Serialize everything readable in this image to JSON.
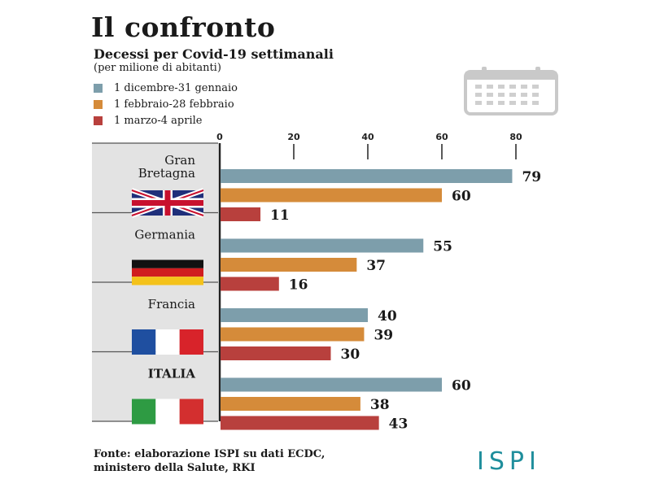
{
  "header": {
    "title": "Il confronto",
    "subtitle": "Decessi per Covid-19  settimanali",
    "note": "(per milione di abitanti)"
  },
  "legend": [
    {
      "label": "1 dicembre-31 gennaio",
      "color": "#7d9eab"
    },
    {
      "label": "1 febbraio-28 febbraio",
      "color": "#d58b3a"
    },
    {
      "label": "1 marzo-4 aprile",
      "color": "#b8403d"
    }
  ],
  "icons": {
    "calendar": "calendar-icon"
  },
  "chart_data": {
    "type": "bar",
    "orientation": "horizontal",
    "x_ticks": [
      0,
      20,
      40,
      60,
      80
    ],
    "xlim": [
      0,
      80
    ],
    "grid": false,
    "legend_position": "top-left",
    "categories": [
      {
        "lines": [
          "Gran",
          "Bretagna"
        ],
        "flag": "uk"
      },
      {
        "lines": [
          "Germania"
        ],
        "flag": "germany"
      },
      {
        "lines": [
          "Francia"
        ],
        "flag": "france"
      },
      {
        "lines": [
          "ITALIA"
        ],
        "flag": "italy"
      }
    ],
    "series": [
      {
        "name": "1 dicembre-31 gennaio",
        "color": "#7d9eab",
        "values": [
          79,
          55,
          40,
          60
        ]
      },
      {
        "name": "1 febbraio-28 febbraio",
        "color": "#d58b3a",
        "values": [
          60,
          37,
          39,
          38
        ]
      },
      {
        "name": "1 marzo-4 aprile",
        "color": "#b8403d",
        "values": [
          11,
          16,
          30,
          43
        ]
      }
    ]
  },
  "footer": {
    "source_line1": "Fonte: elaborazione ISPI su dati ECDC,",
    "source_line2": "ministero della Salute, RKI",
    "logo": "ISPI"
  }
}
